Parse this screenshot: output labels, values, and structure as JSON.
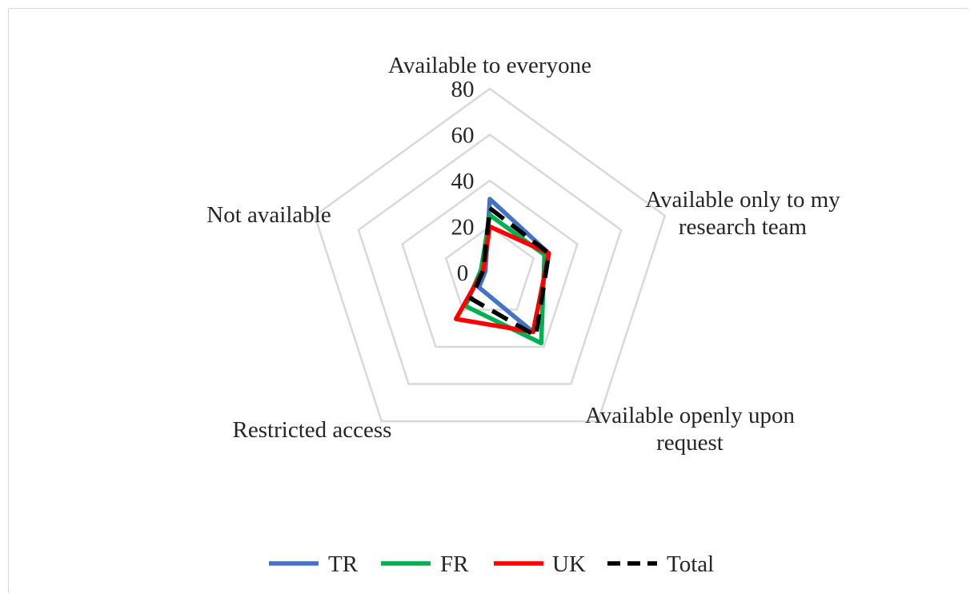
{
  "chart_data": {
    "type": "radar",
    "categories": [
      [
        "Available to everyone"
      ],
      [
        "Available only to my",
        "research team"
      ],
      [
        "Available openly upon",
        "request"
      ],
      [
        "Restricted access"
      ],
      [
        "Not available"
      ]
    ],
    "series": [
      {
        "name": "TR",
        "values": [
          32,
          27,
          32,
          8,
          2
        ],
        "color": "#4472c4",
        "dash": "solid"
      },
      {
        "name": "FR",
        "values": [
          25,
          25,
          38,
          18,
          4
        ],
        "color": "#00b050",
        "dash": "solid"
      },
      {
        "name": "UK",
        "values": [
          20,
          27,
          32,
          25,
          3
        ],
        "color": "#ff0000",
        "dash": "solid"
      },
      {
        "name": "Total",
        "values": [
          28,
          27,
          34,
          14,
          3
        ],
        "color": "#000000",
        "dash": "dashed"
      }
    ],
    "ticks": [
      "0",
      "20",
      "40",
      "60",
      "80"
    ],
    "rmax": 80,
    "grid": true,
    "legend": "bottom"
  }
}
